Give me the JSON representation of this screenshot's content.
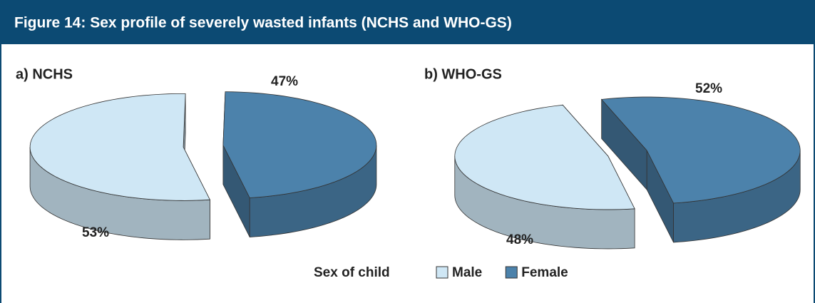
{
  "title": "Figure 14:  Sex profile of severely wasted infants (NCHS and WHO-GS)",
  "legend_title": "Sex of child",
  "chart_data": [
    {
      "type": "pie",
      "title": "a) NCHS",
      "categories": [
        "Male",
        "Female"
      ],
      "values": [
        53,
        47
      ],
      "value_labels": [
        "53%",
        "47%"
      ],
      "colors": [
        "#cfe7f5",
        "#4c82ab"
      ]
    },
    {
      "type": "pie",
      "title": "b) WHO-GS",
      "categories": [
        "Male",
        "Female"
      ],
      "values": [
        48,
        52
      ],
      "value_labels": [
        "48%",
        "52%"
      ],
      "colors": [
        "#cfe7f5",
        "#4c82ab"
      ]
    }
  ]
}
